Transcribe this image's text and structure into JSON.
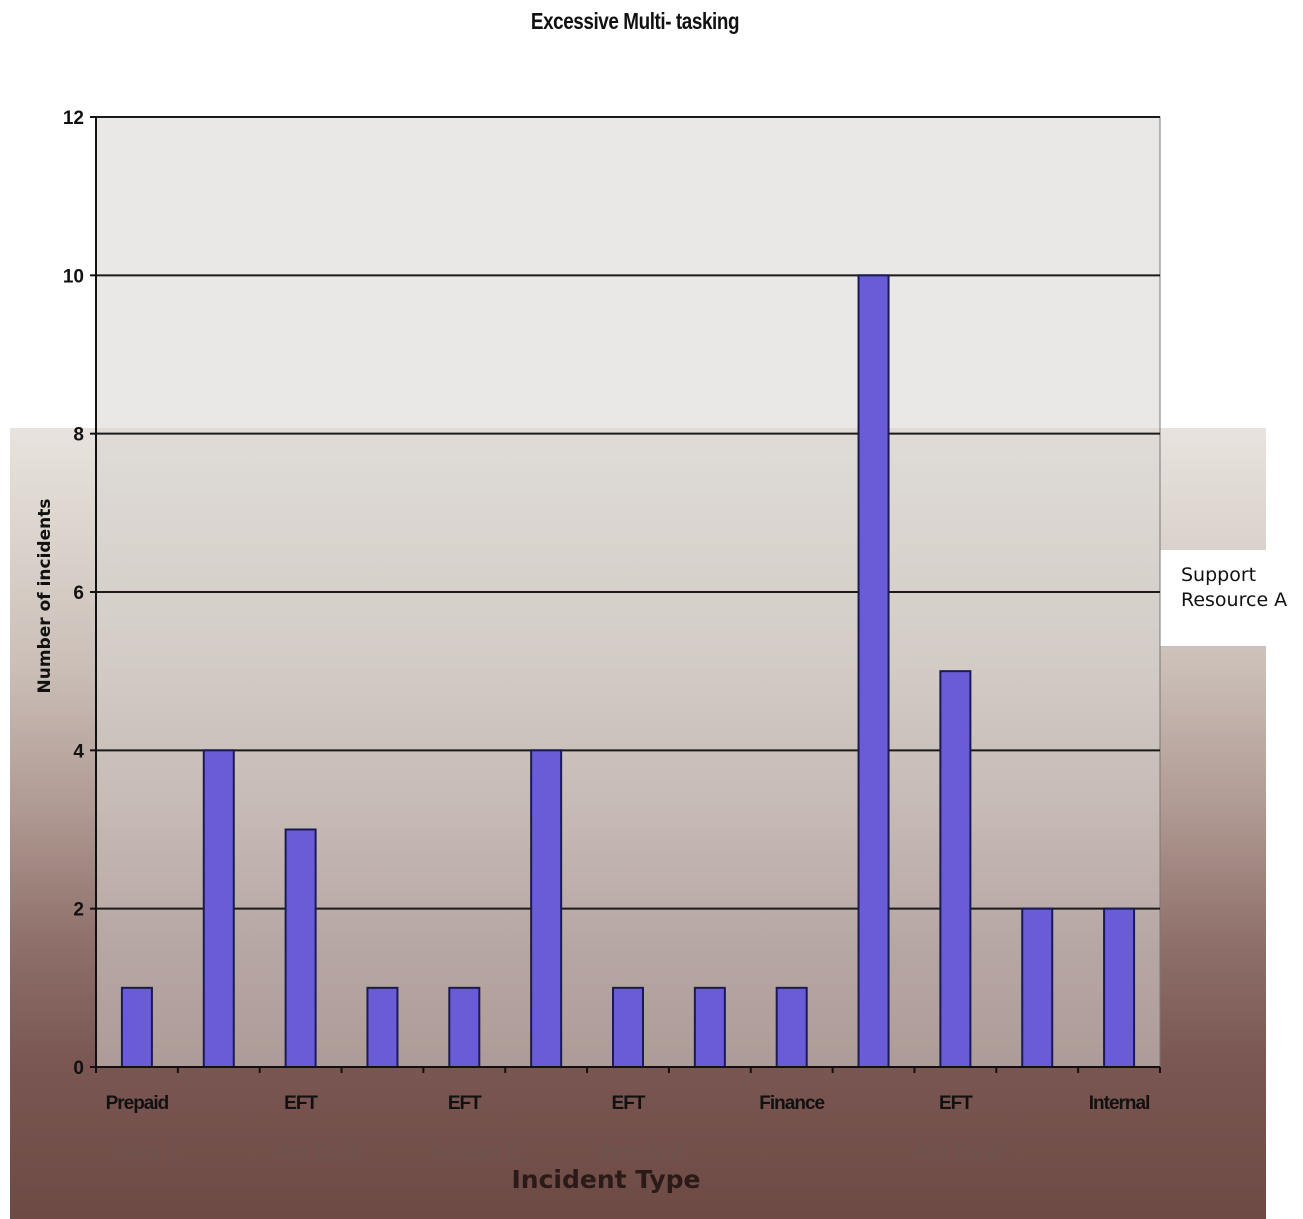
{
  "chart_data": {
    "type": "bar",
    "title": "Excessive Multi- tasking",
    "xlabel": "Incident Type",
    "ylabel": "Number of incidents",
    "ylim": [
      0,
      12
    ],
    "yticks": [
      0,
      2,
      4,
      6,
      8,
      10,
      12
    ],
    "grid": true,
    "legend_position": "right",
    "categories": [
      "Prepaid",
      "",
      "EFT",
      "",
      "EFT",
      "",
      "EFT",
      "",
      "Finance",
      "",
      "EFT",
      "",
      "Internal"
    ],
    "groups": [
      "Client 1",
      "Petr Co X",
      "Retailer C",
      "Petr Co Z",
      "Petr Co W"
    ],
    "series": [
      {
        "name": "Support Resource A",
        "values": [
          1,
          4,
          3,
          1,
          1,
          4,
          1,
          1,
          1,
          10,
          5,
          2,
          2
        ]
      }
    ],
    "colors": {
      "bar": "#6a5cd6",
      "bar_edge": "#1a1a55",
      "plot_area": "#d8d6d1",
      "gridline": "#1a1a1a"
    }
  },
  "legend": {
    "line1": "Support",
    "line2": "Resource A"
  }
}
